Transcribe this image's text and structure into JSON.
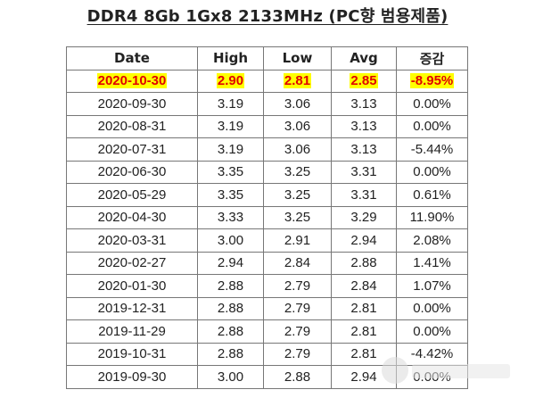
{
  "title": "DDR4 8Gb 1Gx8 2133MHz (PC향 범용제품)",
  "table": {
    "headers": [
      "Date",
      "High",
      "Low",
      "Avg",
      "증감"
    ],
    "highlight_row": [
      "2020-10-30",
      "2.90",
      "2.81",
      "2.85",
      "-8.95%"
    ],
    "rows": [
      [
        "2020-09-30",
        "3.19",
        "3.06",
        "3.13",
        "0.00%"
      ],
      [
        "2020-08-31",
        "3.19",
        "3.06",
        "3.13",
        "0.00%"
      ],
      [
        "2020-07-31",
        "3.19",
        "3.06",
        "3.13",
        "-5.44%"
      ],
      [
        "2020-06-30",
        "3.35",
        "3.25",
        "3.31",
        "0.00%"
      ],
      [
        "2020-05-29",
        "3.35",
        "3.25",
        "3.31",
        "0.61%"
      ],
      [
        "2020-04-30",
        "3.33",
        "3.25",
        "3.29",
        "11.90%"
      ],
      [
        "2020-03-31",
        "3.00",
        "2.91",
        "2.94",
        "2.08%"
      ],
      [
        "2020-02-27",
        "2.94",
        "2.84",
        "2.88",
        "1.41%"
      ],
      [
        "2020-01-30",
        "2.88",
        "2.79",
        "2.84",
        "1.07%"
      ],
      [
        "2019-12-31",
        "2.88",
        "2.79",
        "2.81",
        "0.00%"
      ],
      [
        "2019-11-29",
        "2.88",
        "2.79",
        "2.81",
        "0.00%"
      ],
      [
        "2019-10-31",
        "2.88",
        "2.79",
        "2.81",
        "-4.42%"
      ],
      [
        "2019-09-30",
        "3.00",
        "2.88",
        "2.94",
        "0.00%"
      ]
    ]
  },
  "colors": {
    "highlight_background": "#ffff00",
    "highlight_text": "#e00000",
    "border": "#777777"
  }
}
